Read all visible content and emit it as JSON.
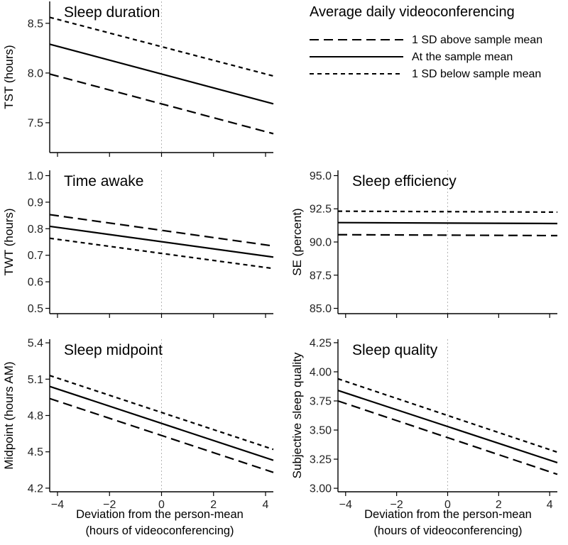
{
  "legend": {
    "title": "Average daily videoconferencing",
    "entries": [
      {
        "label": "1 SD above sample mean",
        "style": "long-dash"
      },
      {
        "label": "At the sample mean",
        "style": "solid"
      },
      {
        "label": "1 SD below sample mean",
        "style": "short-dash"
      }
    ]
  },
  "xaxis": {
    "label_line1": "Deviation from the person-mean",
    "label_line2": "(hours of videoconferencing)",
    "tick_labels": [
      "−4",
      "−2",
      "0",
      "2",
      "4"
    ]
  },
  "chart_data": [
    {
      "type": "line",
      "title": "Sleep duration",
      "xlabel": "",
      "ylabel": "TST (hours)",
      "xlim": [
        -4.3,
        4.3
      ],
      "ylim": [
        7.2,
        8.72
      ],
      "yticks": [
        7.5,
        8.0,
        8.5
      ],
      "ytick_labels": [
        "7.5",
        "8.0",
        "8.5"
      ],
      "series": [
        {
          "name": "1 SD above sample mean",
          "x": [
            -4.3,
            4.3
          ],
          "values": [
            7.99,
            7.39
          ]
        },
        {
          "name": "At the sample mean",
          "x": [
            -4.3,
            4.3
          ],
          "values": [
            8.29,
            7.69
          ]
        },
        {
          "name": "1 SD below sample mean",
          "x": [
            -4.3,
            4.3
          ],
          "values": [
            8.56,
            7.97
          ]
        }
      ]
    },
    {
      "type": "line",
      "title": "Time awake",
      "xlabel": "",
      "ylabel": "TWT (hours)",
      "xlim": [
        -4.3,
        4.3
      ],
      "ylim": [
        0.48,
        1.02
      ],
      "yticks": [
        0.5,
        0.6,
        0.7,
        0.8,
        0.9,
        1.0
      ],
      "ytick_labels": [
        "0.5",
        "0.6",
        "0.7",
        "0.8",
        "0.9",
        "1.0"
      ],
      "series": [
        {
          "name": "1 SD above sample mean",
          "x": [
            -4.3,
            4.3
          ],
          "values": [
            0.853,
            0.735
          ]
        },
        {
          "name": "At the sample mean",
          "x": [
            -4.3,
            4.3
          ],
          "values": [
            0.809,
            0.693
          ]
        },
        {
          "name": "1 SD below sample mean",
          "x": [
            -4.3,
            4.3
          ],
          "values": [
            0.764,
            0.65
          ]
        }
      ]
    },
    {
      "type": "line",
      "title": "Sleep efficiency",
      "xlabel": "",
      "ylabel": "SE (percent)",
      "xlim": [
        -4.3,
        4.3
      ],
      "ylim": [
        84.6,
        95.4
      ],
      "yticks": [
        85.0,
        87.5,
        90.0,
        92.5,
        95.0
      ],
      "ytick_labels": [
        "85.0",
        "87.5",
        "90.0",
        "92.5",
        "95.0"
      ],
      "series": [
        {
          "name": "1 SD above sample mean",
          "x": [
            -4.3,
            4.3
          ],
          "values": [
            90.55,
            90.48
          ]
        },
        {
          "name": "At the sample mean",
          "x": [
            -4.3,
            4.3
          ],
          "values": [
            91.46,
            91.39
          ]
        },
        {
          "name": "1 SD below sample mean",
          "x": [
            -4.3,
            4.3
          ],
          "values": [
            92.32,
            92.25
          ]
        }
      ]
    },
    {
      "type": "line",
      "title": "Sleep midpoint",
      "xlabel": "Deviation from the person-mean (hours of videoconferencing)",
      "ylabel": "Midpoint (hours AM)",
      "xlim": [
        -4.3,
        4.3
      ],
      "ylim": [
        4.17,
        5.43
      ],
      "yticks": [
        4.2,
        4.5,
        4.8,
        5.1,
        5.4
      ],
      "ytick_labels": [
        "4.2",
        "4.5",
        "4.8",
        "5.1",
        "5.4"
      ],
      "series": [
        {
          "name": "1 SD above sample mean",
          "x": [
            -4.3,
            4.3
          ],
          "values": [
            4.94,
            4.33
          ]
        },
        {
          "name": "At the sample mean",
          "x": [
            -4.3,
            4.3
          ],
          "values": [
            5.04,
            4.43
          ]
        },
        {
          "name": "1 SD below sample mean",
          "x": [
            -4.3,
            4.3
          ],
          "values": [
            5.13,
            4.52
          ]
        }
      ]
    },
    {
      "type": "line",
      "title": "Sleep quality",
      "xlabel": "Deviation from the person-mean (hours of videoconferencing)",
      "ylabel": "Subjective sleep quality",
      "xlim": [
        -4.3,
        4.3
      ],
      "ylim": [
        2.97,
        4.28
      ],
      "yticks": [
        3.0,
        3.25,
        3.5,
        3.75,
        4.0,
        4.25
      ],
      "ytick_labels": [
        "3.00",
        "3.25",
        "3.50",
        "3.75",
        "4.00",
        "4.25"
      ],
      "series": [
        {
          "name": "1 SD above sample mean",
          "x": [
            -4.3,
            4.3
          ],
          "values": [
            3.75,
            3.12
          ]
        },
        {
          "name": "At the sample mean",
          "x": [
            -4.3,
            4.3
          ],
          "values": [
            3.84,
            3.22
          ]
        },
        {
          "name": "1 SD below sample mean",
          "x": [
            -4.3,
            4.3
          ],
          "values": [
            3.94,
            3.31
          ]
        }
      ]
    }
  ]
}
